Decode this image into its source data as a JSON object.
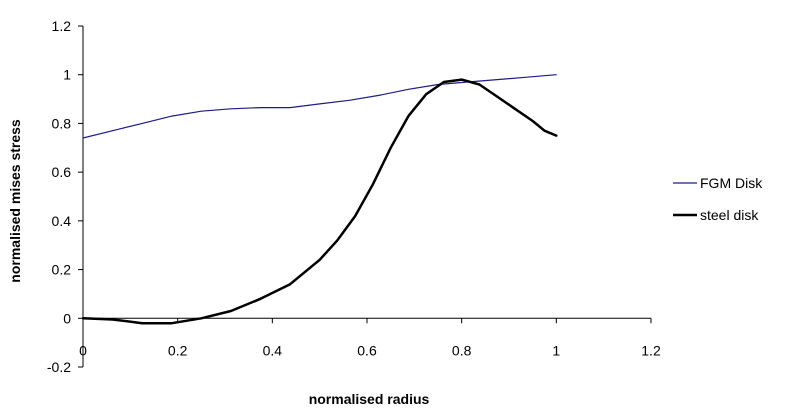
{
  "chart_data": {
    "type": "line",
    "title": "",
    "xlabel": "normalised radius",
    "ylabel": "normalised mises stress",
    "xlim": [
      0,
      1.2
    ],
    "ylim": [
      -0.2,
      1.2
    ],
    "x_ticks": [
      "0",
      "0.2",
      "0.4",
      "0.6",
      "0.8",
      "1",
      "1.2"
    ],
    "y_ticks": [
      "-0.2",
      "0",
      "0.2",
      "0.4",
      "0.6",
      "0.8",
      "1",
      "1.2"
    ],
    "grid": false,
    "legend_position": "right",
    "series": [
      {
        "name": "FGM Disk",
        "color": "#1c1c8a",
        "x": [
          0,
          0.0625,
          0.125,
          0.1875,
          0.25,
          0.3125,
          0.375,
          0.4375,
          0.5,
          0.5625,
          0.625,
          0.6875,
          0.75,
          0.8125,
          0.875,
          0.9375,
          1.0
        ],
        "y": [
          0.74,
          0.77,
          0.8,
          0.83,
          0.85,
          0.86,
          0.865,
          0.865,
          0.88,
          0.895,
          0.915,
          0.94,
          0.96,
          0.97,
          0.98,
          0.99,
          1.0
        ]
      },
      {
        "name": "steel disk",
        "color": "#000000",
        "x": [
          0,
          0.0625,
          0.125,
          0.1875,
          0.25,
          0.3125,
          0.375,
          0.4375,
          0.5,
          0.5375,
          0.575,
          0.6125,
          0.65,
          0.6875,
          0.725,
          0.7625,
          0.8,
          0.8375,
          0.875,
          0.9125,
          0.95,
          0.975,
          1.0
        ],
        "y": [
          0,
          -0.005,
          -0.02,
          -0.02,
          0.0,
          0.03,
          0.08,
          0.14,
          0.24,
          0.32,
          0.42,
          0.55,
          0.7,
          0.83,
          0.92,
          0.97,
          0.98,
          0.96,
          0.91,
          0.86,
          0.81,
          0.77,
          0.75
        ]
      }
    ]
  }
}
